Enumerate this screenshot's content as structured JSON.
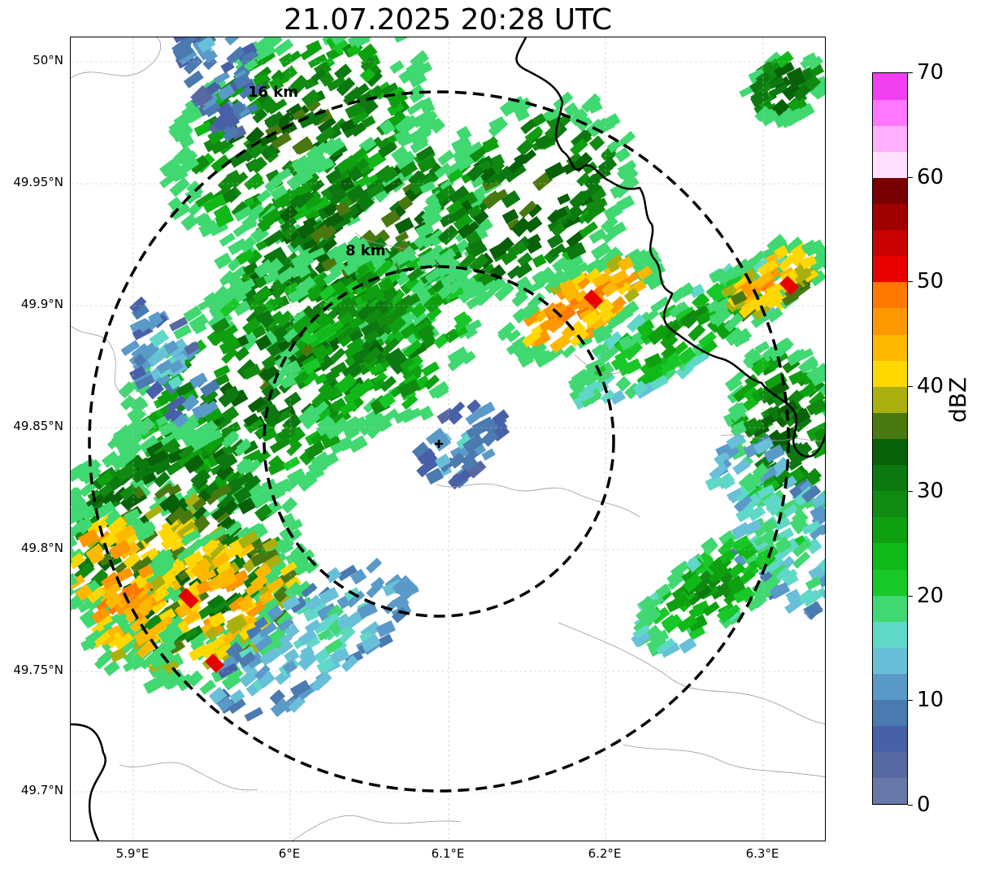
{
  "title": "21.07.2025 20:28 UTC",
  "map": {
    "lat_labels": [
      "50°N",
      "49.95°N",
      "49.9°N",
      "49.85°N",
      "49.8°N",
      "49.75°N",
      "49.7°N"
    ],
    "lon_labels": [
      "5.9°E",
      "6°E",
      "6.1°E",
      "6.2°E",
      "6.3°E"
    ],
    "range_rings": [
      {
        "label": "8 km",
        "radius_km": 8
      },
      {
        "label": "16 km",
        "radius_km": 16
      }
    ],
    "radar_site_icon": "plus-marker"
  },
  "colorbar": {
    "unit": "dBZ",
    "ticks": [
      "0",
      "10",
      "20",
      "30",
      "40",
      "50",
      "60",
      "70"
    ],
    "colors": [
      "#6878a8",
      "#5868a0",
      "#4860a8",
      "#4a7ab0",
      "#5a9ac8",
      "#68c0d8",
      "#60d8c8",
      "#40d870",
      "#18c828",
      "#10b818",
      "#0ea010",
      "#108a10",
      "#0c7810",
      "#086008",
      "#4a7810",
      "#aab010",
      "#ffd800",
      "#ffb800",
      "#ff9800",
      "#ff7800",
      "#e80000",
      "#c80000",
      "#a00000",
      "#780000",
      "#ffe0ff",
      "#ffb0ff",
      "#ff78ff",
      "#f040f0"
    ]
  },
  "colors": {
    "accent_rings": "#000000",
    "borders": "#000000",
    "coastlines": "#999999"
  }
}
